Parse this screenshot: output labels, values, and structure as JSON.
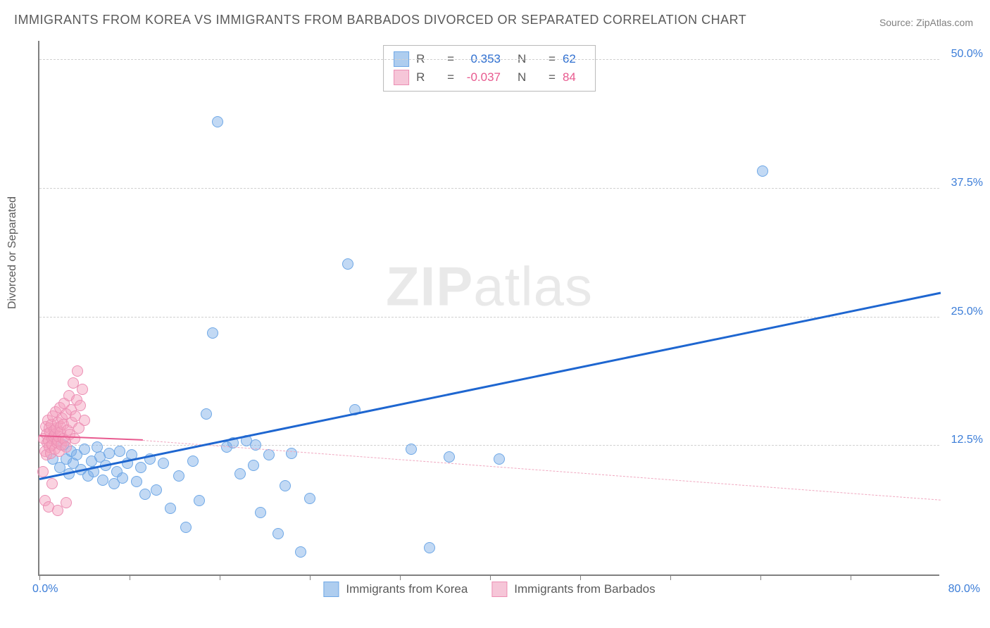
{
  "title": "IMMIGRANTS FROM KOREA VS IMMIGRANTS FROM BARBADOS DIVORCED OR SEPARATED CORRELATION CHART",
  "source_label": "Source: ",
  "source_name": "ZipAtlas.com",
  "watermark": {
    "bold": "ZIP",
    "rest": "atlas"
  },
  "chart": {
    "type": "scatter",
    "y_axis_title": "Divorced or Separated",
    "xlim": [
      0,
      80
    ],
    "ylim": [
      0,
      52
    ],
    "x_origin_label": "0.0%",
    "x_max_label": "80.0%",
    "x_ticks": [
      0,
      8,
      16,
      24,
      32,
      40,
      48,
      56,
      64,
      72
    ],
    "y_gridlines": [
      {
        "value": 12.5,
        "label": "12.5%"
      },
      {
        "value": 25.0,
        "label": "25.0%"
      },
      {
        "value": 37.5,
        "label": "37.5%"
      },
      {
        "value": 50.0,
        "label": "50.0%"
      }
    ],
    "background_color": "#ffffff",
    "grid_color": "#d0d0d0",
    "axis_color": "#808080",
    "tick_label_color": "#3b7dd8",
    "point_radius": 8,
    "series": [
      {
        "name": "Immigrants from Korea",
        "color_fill": "rgba(120,170,230,0.45)",
        "color_stroke": "#6fa8e6",
        "swatch_fill": "#aecdef",
        "swatch_border": "#6fa8e6",
        "R": "0.353",
        "N": "62",
        "stat_color": "#2f6fd0",
        "trend": {
          "x1": 0,
          "y1": 9.2,
          "x2": 80,
          "y2": 27.3,
          "stroke": "#1e66d0",
          "width": 3,
          "dashed": false
        },
        "points": [
          [
            1.2,
            11.2
          ],
          [
            1.8,
            10.4
          ],
          [
            2.1,
            12.6
          ],
          [
            2.4,
            11.2
          ],
          [
            2.6,
            9.8
          ],
          [
            2.8,
            12.0
          ],
          [
            3.0,
            10.8
          ],
          [
            3.3,
            11.6
          ],
          [
            3.7,
            10.2
          ],
          [
            4.0,
            12.2
          ],
          [
            4.3,
            9.6
          ],
          [
            4.6,
            11.0
          ],
          [
            4.8,
            10.0
          ],
          [
            5.1,
            12.4
          ],
          [
            5.4,
            11.4
          ],
          [
            5.6,
            9.2
          ],
          [
            5.9,
            10.6
          ],
          [
            6.2,
            11.8
          ],
          [
            6.6,
            8.8
          ],
          [
            6.9,
            10.0
          ],
          [
            7.1,
            12.0
          ],
          [
            7.4,
            9.4
          ],
          [
            7.8,
            10.8
          ],
          [
            8.2,
            11.6
          ],
          [
            8.6,
            9.0
          ],
          [
            9.0,
            10.4
          ],
          [
            9.4,
            7.8
          ],
          [
            9.8,
            11.2
          ],
          [
            10.4,
            8.2
          ],
          [
            11.0,
            10.8
          ],
          [
            11.6,
            6.4
          ],
          [
            12.4,
            9.6
          ],
          [
            13.0,
            4.6
          ],
          [
            13.6,
            11.0
          ],
          [
            14.2,
            7.2
          ],
          [
            14.8,
            15.6
          ],
          [
            15.4,
            23.5
          ],
          [
            15.8,
            44.0
          ],
          [
            16.6,
            12.4
          ],
          [
            17.2,
            12.8
          ],
          [
            17.8,
            9.8
          ],
          [
            18.4,
            13.0
          ],
          [
            19.0,
            10.6
          ],
          [
            19.2,
            12.6
          ],
          [
            19.6,
            6.0
          ],
          [
            20.4,
            11.6
          ],
          [
            21.2,
            4.0
          ],
          [
            21.8,
            8.6
          ],
          [
            22.4,
            11.8
          ],
          [
            23.2,
            2.2
          ],
          [
            24.0,
            7.4
          ],
          [
            27.4,
            30.2
          ],
          [
            28.0,
            16.0
          ],
          [
            33.0,
            12.2
          ],
          [
            34.6,
            2.6
          ],
          [
            36.4,
            11.4
          ],
          [
            40.8,
            11.2
          ],
          [
            64.2,
            39.2
          ]
        ]
      },
      {
        "name": "Immigrants from Barbados",
        "color_fill": "rgba(244,160,190,0.48)",
        "color_stroke": "#ec8fb4",
        "swatch_fill": "#f6c6d8",
        "swatch_border": "#ec8fb4",
        "R": "-0.037",
        "N": "84",
        "stat_color": "#e85a8f",
        "trend_solid": {
          "x1": 0,
          "y1": 13.4,
          "x2": 9.2,
          "y2": 13.0,
          "stroke": "#e85a8f",
          "width": 2,
          "dashed": false
        },
        "trend_dashed": {
          "x1": 9.2,
          "y1": 13.0,
          "x2": 80,
          "y2": 7.2,
          "stroke": "#f0a8c0",
          "width": 1,
          "dashed": true
        },
        "points": [
          [
            0.3,
            10.0
          ],
          [
            0.4,
            13.2
          ],
          [
            0.5,
            12.0
          ],
          [
            0.55,
            14.4
          ],
          [
            0.6,
            11.6
          ],
          [
            0.65,
            13.6
          ],
          [
            0.7,
            12.8
          ],
          [
            0.75,
            15.0
          ],
          [
            0.8,
            13.0
          ],
          [
            0.85,
            14.2
          ],
          [
            0.9,
            12.4
          ],
          [
            0.95,
            13.8
          ],
          [
            1.0,
            11.8
          ],
          [
            1.05,
            14.6
          ],
          [
            1.1,
            13.2
          ],
          [
            1.15,
            12.6
          ],
          [
            1.2,
            15.4
          ],
          [
            1.25,
            13.4
          ],
          [
            1.3,
            14.0
          ],
          [
            1.35,
            12.2
          ],
          [
            1.4,
            13.6
          ],
          [
            1.45,
            15.8
          ],
          [
            1.5,
            14.2
          ],
          [
            1.55,
            12.8
          ],
          [
            1.6,
            13.0
          ],
          [
            1.65,
            14.8
          ],
          [
            1.7,
            13.4
          ],
          [
            1.75,
            12.0
          ],
          [
            1.8,
            16.2
          ],
          [
            1.85,
            14.4
          ],
          [
            1.9,
            13.8
          ],
          [
            1.95,
            12.6
          ],
          [
            2.0,
            15.2
          ],
          [
            2.1,
            13.2
          ],
          [
            2.15,
            14.6
          ],
          [
            2.2,
            16.6
          ],
          [
            2.3,
            13.0
          ],
          [
            2.35,
            15.6
          ],
          [
            2.4,
            12.4
          ],
          [
            2.5,
            14.0
          ],
          [
            2.6,
            17.4
          ],
          [
            2.7,
            13.6
          ],
          [
            2.8,
            16.0
          ],
          [
            2.9,
            14.8
          ],
          [
            3.0,
            18.6
          ],
          [
            3.1,
            13.2
          ],
          [
            3.2,
            15.4
          ],
          [
            3.3,
            17.0
          ],
          [
            3.4,
            19.8
          ],
          [
            3.5,
            14.2
          ],
          [
            3.6,
            16.4
          ],
          [
            3.8,
            18.0
          ],
          [
            4.0,
            15.0
          ],
          [
            0.5,
            7.2
          ],
          [
            0.8,
            6.6
          ],
          [
            1.6,
            6.2
          ],
          [
            2.4,
            7.0
          ],
          [
            1.1,
            8.8
          ]
        ]
      }
    ]
  }
}
